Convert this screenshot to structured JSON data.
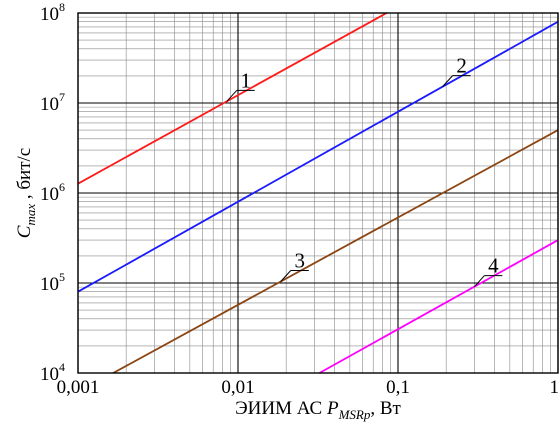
{
  "chart_data": {
    "type": "line",
    "x_scale": "log",
    "y_scale": "log",
    "xlim": [
      0.001,
      1
    ],
    "ylim": [
      10000,
      100000000
    ],
    "grid": true,
    "x_ticks": [
      "0,001",
      "0,01",
      "0,1",
      "1"
    ],
    "y_ticks": [
      {
        "base": "10",
        "exp": "4"
      },
      {
        "base": "10",
        "exp": "5"
      },
      {
        "base": "10",
        "exp": "6"
      },
      {
        "base": "10",
        "exp": "7"
      },
      {
        "base": "10",
        "exp": "8"
      }
    ],
    "xlabel": {
      "main": "ЭИИМ АС ",
      "var": "P",
      "sub": "MSRp",
      "unit": ", Вт"
    },
    "ylabel": {
      "var": "C",
      "sub": "max",
      "unit": " ,  бит/с"
    },
    "series": [
      {
        "label": "1",
        "color": "#ff1a1a",
        "x": [
          0.001,
          0.0849
        ],
        "y": [
          1270000,
          100000000
        ]
      },
      {
        "label": "2",
        "color": "#1a1aff",
        "x": [
          0.001,
          1
        ],
        "y": [
          80000,
          80000000
        ]
      },
      {
        "label": "3",
        "color": "#8b4513",
        "x": [
          0.00166,
          1
        ],
        "y": [
          10000,
          5000000
        ]
      },
      {
        "label": "4",
        "color": "#ff00ff",
        "x": [
          0.0323,
          1
        ],
        "y": [
          10000,
          300000
        ]
      }
    ],
    "annotations": [
      {
        "text": "1",
        "series": 0,
        "at_x": 0.0085
      },
      {
        "text": "2",
        "series": 1,
        "at_x": 0.19
      },
      {
        "text": "3",
        "series": 2,
        "at_x": 0.0185
      },
      {
        "text": "4",
        "series": 3,
        "at_x": 0.3
      }
    ]
  }
}
